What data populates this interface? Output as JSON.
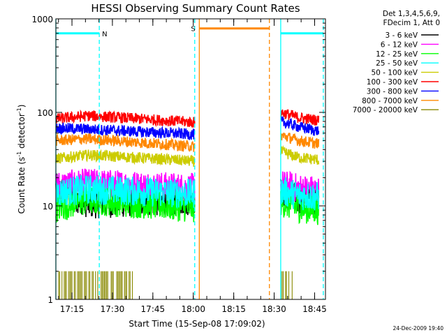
{
  "chart_data": {
    "type": "line",
    "title": "HESSI Observing Summary Count Rates",
    "xlabel": "Start Time (15-Sep-08 17:09:02)",
    "ylabel_main": "Count Rate (s",
    "ylabel_sup1": "-1",
    "ylabel_mid": " detector",
    "ylabel_sup2": "-1",
    "ylabel_end": ")",
    "yscale": "log",
    "ylim": [
      1,
      1000
    ],
    "xlim_minutes": [
      0,
      100
    ],
    "x_ticks": [
      {
        "label": "17:15",
        "min": 5.97
      },
      {
        "label": "17:30",
        "min": 20.97
      },
      {
        "label": "17:45",
        "min": 35.97
      },
      {
        "label": "18:00",
        "min": 50.97
      },
      {
        "label": "18:15",
        "min": 65.97
      },
      {
        "label": "18:30",
        "min": 80.97
      },
      {
        "label": "18:45",
        "min": 95.97
      }
    ],
    "y_ticks": [
      {
        "label": "1",
        "value": 1
      },
      {
        "label": "10",
        "value": 10
      },
      {
        "label": "100",
        "value": 100
      },
      {
        "label": "1000",
        "value": 1000
      }
    ],
    "legend_header": [
      "Det 1,3,4,5,6,9,",
      "FDecim 1, Att 0"
    ],
    "series": [
      {
        "name": "3 - 6 keV",
        "color": "#000000",
        "segments": [
          [
            0,
            15.5,
            12,
            10.5,
            51.5,
            11.5
          ],
          [
            83.4,
            14,
            90,
            12,
            97.5,
            11.5
          ]
        ]
      },
      {
        "name": "6 - 12 keV",
        "color": "#ff00ff",
        "segments": [
          [
            0,
            16.5,
            12,
            17.5,
            51.5,
            15.5
          ],
          [
            83.4,
            17,
            90,
            15.5,
            97.5,
            14.5
          ]
        ]
      },
      {
        "name": "12 - 25 keV",
        "color": "#00ff00",
        "segments": [
          [
            0,
            9.5,
            12,
            11.5,
            51.5,
            9.5
          ],
          [
            83.4,
            11,
            90,
            9.5,
            97.5,
            9
          ]
        ]
      },
      {
        "name": "25 - 50 keV",
        "color": "#00ffff",
        "segments": [
          [
            0,
            14,
            12,
            15,
            51.5,
            13.5
          ],
          [
            83.4,
            14.5,
            90,
            13,
            97.5,
            12.5
          ]
        ]
      },
      {
        "name": "50 - 100 keV",
        "color": "#cccc00",
        "segments": [
          [
            0,
            32,
            12,
            35,
            51.5,
            30
          ],
          [
            83.4,
            38,
            90,
            33,
            97.5,
            31
          ]
        ]
      },
      {
        "name": "100 - 300 keV",
        "color": "#ff0000",
        "segments": [
          [
            0,
            85,
            12,
            92,
            51.5,
            78
          ],
          [
            83.4,
            100,
            90,
            88,
            97.5,
            82
          ]
        ]
      },
      {
        "name": "300 - 800 keV",
        "color": "#0000ff",
        "segments": [
          [
            0,
            68,
            12,
            66,
            51.5,
            58
          ],
          [
            83.4,
            80,
            90,
            70,
            97.5,
            63
          ]
        ]
      },
      {
        "name": "800 - 7000 keV",
        "color": "#ff8800",
        "segments": [
          [
            0,
            50,
            12,
            52,
            51.5,
            43
          ],
          [
            83.4,
            57,
            90,
            50,
            97.5,
            46
          ]
        ]
      },
      {
        "name": "7000 - 20000 keV",
        "color": "#888800",
        "segments": []
      }
    ],
    "flags": [
      {
        "label": "N",
        "color": "#00ffff",
        "x_start": 0,
        "x_end": 16.1,
        "level": 700
      },
      {
        "label": "",
        "color": "#00ffff",
        "x_start": 83.4,
        "x_end": 99.2,
        "level": 700
      },
      {
        "label": "S",
        "color": "#ff8800",
        "x_start": 53.2,
        "x_end": 79.2,
        "level": 790
      }
    ],
    "markers": [
      {
        "color": "#00ffff",
        "style": "solid",
        "x_min": 0
      },
      {
        "color": "#00ffff",
        "style": "dashed",
        "x_min": 16.1
      },
      {
        "color": "#00ffff",
        "style": "dashed",
        "x_min": 51.5
      },
      {
        "color": "#ff8800",
        "style": "solid",
        "x_min": 53.2
      },
      {
        "color": "#ff8800",
        "style": "dashed",
        "x_min": 79.2
      },
      {
        "color": "#00ffff",
        "style": "solid",
        "x_min": 83.4
      },
      {
        "color": "#00ffff",
        "style": "dashed",
        "x_min": 99.2
      }
    ],
    "grid": false,
    "legend_position": "right"
  },
  "footer_timestamp": "24-Dec-2009 19:40"
}
